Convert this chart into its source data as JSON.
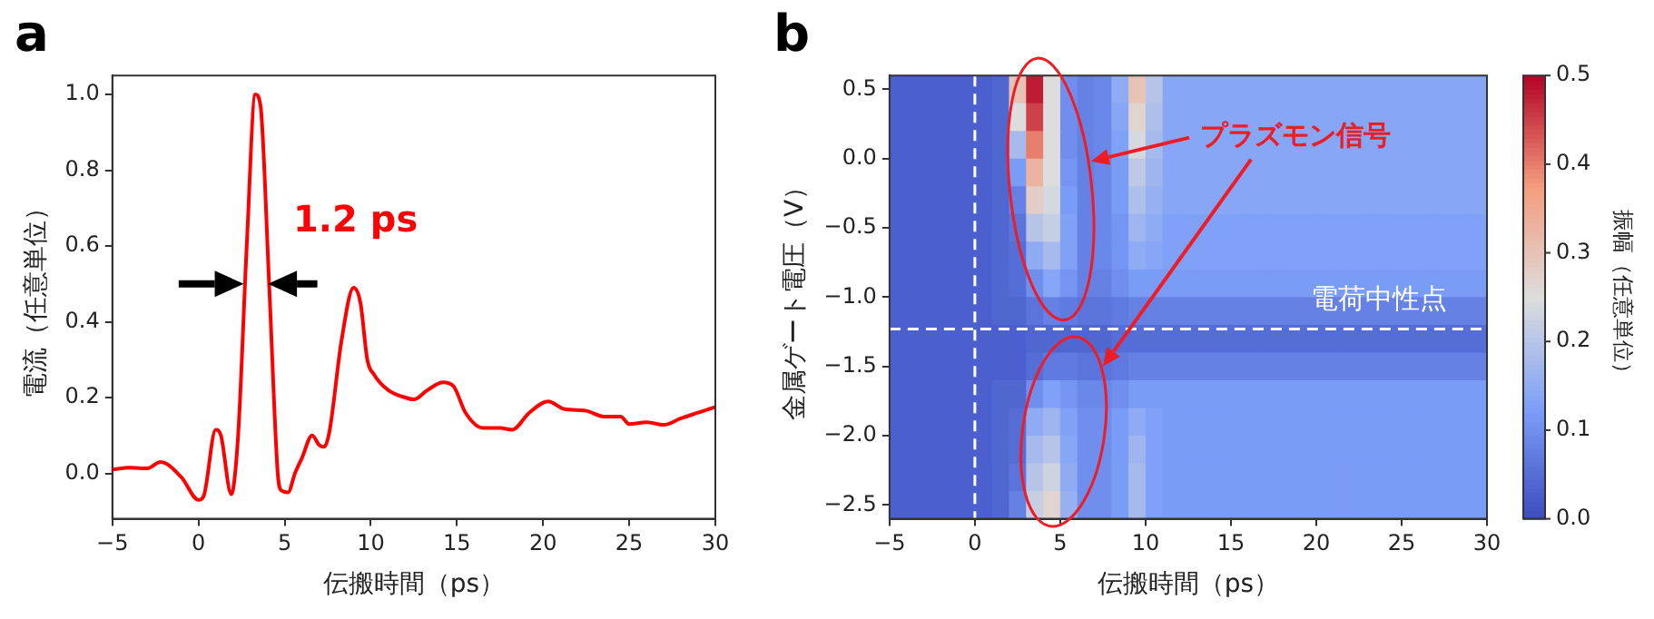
{
  "chart_data": [
    {
      "type": "line",
      "title": "a",
      "xlabel": "伝搬時間（ps）",
      "ylabel": "電流（任意単位）",
      "xlim": [
        -5,
        30
      ],
      "ylim": [
        -0.12,
        1.05
      ],
      "xticks": [
        {
          "value": -5,
          "label": "−5"
        },
        0,
        5,
        10,
        15,
        20,
        25,
        30
      ],
      "yticks": [
        {
          "value": 0,
          "label": "0.0"
        },
        0.2,
        0.4,
        0.6,
        0.8,
        {
          "value": 1,
          "label": "1.0"
        }
      ],
      "grid": false,
      "legend": false,
      "annotations": [
        "1.2 ps"
      ],
      "series": [
        {
          "color": "#ff0000",
          "x": [
            -5,
            -4,
            -3,
            -2.2,
            -1,
            0,
            0.3,
            1,
            1.3,
            1.9,
            2.3,
            2.8,
            3.3,
            3.6,
            4.1,
            4.6,
            4.8,
            5.2,
            5.6,
            6,
            6.6,
            7,
            7.3,
            7.6,
            8.3,
            9,
            9.4,
            9.8,
            10.2,
            11,
            12,
            12.5,
            13.3,
            14.2,
            14.8,
            15.5,
            16.5,
            17.5,
            18.2,
            19.2,
            20.3,
            21.2,
            22.5,
            23.5,
            24.5,
            25,
            26,
            27,
            28,
            29,
            30
          ],
          "values": [
            0.01,
            0.015,
            0.013,
            0.03,
            -0.01,
            -0.07,
            -0.06,
            0.115,
            0.1,
            -0.055,
            0.1,
            0.6,
            1.0,
            0.97,
            0.5,
            0.0,
            -0.045,
            -0.05,
            0.0,
            0.04,
            0.1,
            0.075,
            0.07,
            0.11,
            0.35,
            0.49,
            0.45,
            0.3,
            0.26,
            0.22,
            0.2,
            0.195,
            0.22,
            0.24,
            0.23,
            0.16,
            0.12,
            0.12,
            0.115,
            0.16,
            0.19,
            0.17,
            0.165,
            0.15,
            0.15,
            0.13,
            0.135,
            0.128,
            0.145,
            0.16,
            0.175
          ]
        }
      ]
    },
    {
      "type": "heatmap",
      "title": "b",
      "xlabel": "伝搬時間（ps）",
      "ylabel": "金属ゲート電圧（V）",
      "clabel": "振幅（任意単位）",
      "xlim": [
        -5,
        30
      ],
      "ylim": [
        -2.6,
        0.6
      ],
      "xticks": [
        {
          "value": -5,
          "label": "−5"
        },
        0,
        5,
        10,
        15,
        20,
        25,
        30
      ],
      "yticks": [
        0.5,
        {
          "value": 0,
          "label": "0.0"
        },
        {
          "value": -0.5,
          "label": "−0.5"
        },
        {
          "value": -1,
          "label": "−1.0"
        },
        {
          "value": -1.5,
          "label": "−1.5"
        },
        {
          "value": -2,
          "label": "−2.0"
        },
        {
          "value": -2.5,
          "label": "−2.5"
        }
      ],
      "clim": [
        0,
        0.5
      ],
      "cticks": [
        {
          "value": 0,
          "label": "0.0"
        },
        0.1,
        0.2,
        0.3,
        0.4,
        0.5
      ],
      "legend": false,
      "ref_lines": [
        {
          "axis": "x",
          "value": 0,
          "label": null,
          "color": "#ffffff",
          "line_style": "dashed"
        },
        {
          "axis": "y",
          "value": -1.23,
          "label": "電荷中性点",
          "color": "#ffffff",
          "line_style": "dashed"
        }
      ],
      "annotations": [
        "プラズモン信号"
      ],
      "x": [
        -4.5,
        -3.5,
        -2.5,
        -1.5,
        -0.5,
        0.5,
        1.5,
        2.5,
        3.5,
        4.5,
        5.5,
        6.5,
        7.5,
        8.5,
        9.5,
        10.5,
        11.5,
        12.5,
        13.5,
        14.5,
        15.5,
        16.5,
        17.5,
        18.5,
        19.5,
        20.5,
        21.5,
        22.5,
        23.5,
        24.5,
        25.5,
        26.5,
        27.5,
        28.5,
        29.5
      ],
      "y": [
        0.5,
        0.3,
        0.1,
        -0.1,
        -0.3,
        -0.5,
        -0.7,
        -0.9,
        -1.1,
        -1.3,
        -1.5,
        -1.7,
        -1.9,
        -2.1,
        -2.3,
        -2.5
      ],
      "cells": [
        [
          0.03,
          0.03,
          0.03,
          0.03,
          0.03,
          0.03,
          0.04,
          0.3,
          0.48,
          0.25,
          0.1,
          0.08,
          0.09,
          0.15,
          0.3,
          0.2,
          0.14,
          0.14,
          0.14,
          0.14,
          0.14,
          0.14,
          0.14,
          0.14,
          0.14,
          0.14,
          0.14,
          0.14,
          0.14,
          0.14,
          0.14,
          0.14,
          0.14,
          0.14,
          0.14
        ],
        [
          0.03,
          0.03,
          0.03,
          0.03,
          0.03,
          0.03,
          0.04,
          0.25,
          0.45,
          0.25,
          0.1,
          0.08,
          0.09,
          0.14,
          0.27,
          0.19,
          0.14,
          0.14,
          0.14,
          0.14,
          0.14,
          0.14,
          0.14,
          0.14,
          0.14,
          0.14,
          0.14,
          0.14,
          0.14,
          0.14,
          0.14,
          0.14,
          0.14,
          0.14,
          0.14
        ],
        [
          0.03,
          0.03,
          0.03,
          0.03,
          0.03,
          0.03,
          0.04,
          0.18,
          0.4,
          0.25,
          0.1,
          0.08,
          0.09,
          0.13,
          0.24,
          0.18,
          0.14,
          0.14,
          0.14,
          0.14,
          0.14,
          0.14,
          0.14,
          0.14,
          0.14,
          0.14,
          0.14,
          0.14,
          0.14,
          0.14,
          0.14,
          0.14,
          0.14,
          0.14,
          0.14
        ],
        [
          0.03,
          0.03,
          0.03,
          0.03,
          0.03,
          0.03,
          0.04,
          0.12,
          0.33,
          0.25,
          0.11,
          0.08,
          0.09,
          0.12,
          0.21,
          0.17,
          0.14,
          0.14,
          0.14,
          0.14,
          0.14,
          0.14,
          0.14,
          0.14,
          0.14,
          0.14,
          0.14,
          0.14,
          0.14,
          0.14,
          0.14,
          0.14,
          0.14,
          0.14,
          0.14
        ],
        [
          0.03,
          0.03,
          0.03,
          0.03,
          0.03,
          0.03,
          0.04,
          0.08,
          0.28,
          0.24,
          0.12,
          0.08,
          0.09,
          0.12,
          0.19,
          0.16,
          0.14,
          0.14,
          0.14,
          0.14,
          0.14,
          0.14,
          0.14,
          0.14,
          0.14,
          0.14,
          0.14,
          0.14,
          0.14,
          0.14,
          0.14,
          0.14,
          0.14,
          0.14,
          0.14
        ],
        [
          0.03,
          0.03,
          0.03,
          0.03,
          0.03,
          0.03,
          0.04,
          0.06,
          0.2,
          0.22,
          0.13,
          0.08,
          0.09,
          0.11,
          0.17,
          0.15,
          0.13,
          0.13,
          0.13,
          0.13,
          0.13,
          0.13,
          0.13,
          0.13,
          0.13,
          0.13,
          0.13,
          0.13,
          0.13,
          0.13,
          0.13,
          0.13,
          0.13,
          0.13,
          0.13
        ],
        [
          0.03,
          0.03,
          0.03,
          0.03,
          0.03,
          0.03,
          0.04,
          0.05,
          0.15,
          0.18,
          0.13,
          0.08,
          0.09,
          0.11,
          0.15,
          0.14,
          0.13,
          0.13,
          0.13,
          0.13,
          0.13,
          0.13,
          0.13,
          0.13,
          0.13,
          0.13,
          0.13,
          0.13,
          0.13,
          0.13,
          0.13,
          0.13,
          0.13,
          0.13,
          0.13
        ],
        [
          0.03,
          0.03,
          0.03,
          0.03,
          0.03,
          0.03,
          0.04,
          0.05,
          0.1,
          0.14,
          0.11,
          0.08,
          0.08,
          0.1,
          0.12,
          0.12,
          0.12,
          0.12,
          0.12,
          0.12,
          0.12,
          0.12,
          0.12,
          0.12,
          0.12,
          0.12,
          0.12,
          0.12,
          0.12,
          0.12,
          0.12,
          0.12,
          0.12,
          0.12,
          0.12
        ],
        [
          0.03,
          0.03,
          0.03,
          0.03,
          0.03,
          0.03,
          0.04,
          0.04,
          0.06,
          0.08,
          0.07,
          0.06,
          0.06,
          0.07,
          0.08,
          0.08,
          0.08,
          0.08,
          0.08,
          0.08,
          0.08,
          0.08,
          0.08,
          0.08,
          0.08,
          0.08,
          0.08,
          0.08,
          0.08,
          0.08,
          0.08,
          0.08,
          0.08,
          0.08,
          0.08
        ],
        [
          0.03,
          0.03,
          0.03,
          0.03,
          0.03,
          0.03,
          0.03,
          0.03,
          0.04,
          0.04,
          0.04,
          0.04,
          0.04,
          0.05,
          0.05,
          0.05,
          0.05,
          0.05,
          0.05,
          0.05,
          0.05,
          0.05,
          0.05,
          0.05,
          0.05,
          0.05,
          0.05,
          0.05,
          0.05,
          0.05,
          0.05,
          0.05,
          0.05,
          0.05,
          0.05
        ],
        [
          0.03,
          0.03,
          0.03,
          0.03,
          0.03,
          0.03,
          0.03,
          0.03,
          0.05,
          0.07,
          0.07,
          0.06,
          0.06,
          0.07,
          0.08,
          0.08,
          0.08,
          0.08,
          0.08,
          0.08,
          0.08,
          0.08,
          0.08,
          0.08,
          0.08,
          0.08,
          0.08,
          0.08,
          0.08,
          0.08,
          0.08,
          0.08,
          0.08,
          0.08,
          0.08
        ],
        [
          0.03,
          0.03,
          0.03,
          0.03,
          0.03,
          0.03,
          0.04,
          0.04,
          0.1,
          0.13,
          0.11,
          0.09,
          0.09,
          0.1,
          0.12,
          0.12,
          0.12,
          0.12,
          0.12,
          0.12,
          0.12,
          0.12,
          0.12,
          0.12,
          0.12,
          0.12,
          0.12,
          0.12,
          0.12,
          0.12,
          0.12,
          0.12,
          0.12,
          0.12,
          0.12
        ],
        [
          0.03,
          0.03,
          0.03,
          0.03,
          0.03,
          0.03,
          0.04,
          0.05,
          0.15,
          0.17,
          0.13,
          0.1,
          0.1,
          0.12,
          0.15,
          0.13,
          0.12,
          0.12,
          0.12,
          0.12,
          0.12,
          0.12,
          0.12,
          0.12,
          0.12,
          0.12,
          0.12,
          0.12,
          0.12,
          0.12,
          0.12,
          0.12,
          0.12,
          0.12,
          0.12
        ],
        [
          0.03,
          0.03,
          0.03,
          0.03,
          0.03,
          0.03,
          0.04,
          0.05,
          0.18,
          0.2,
          0.14,
          0.1,
          0.1,
          0.12,
          0.17,
          0.13,
          0.12,
          0.12,
          0.12,
          0.12,
          0.12,
          0.12,
          0.12,
          0.12,
          0.12,
          0.12,
          0.12,
          0.12,
          0.12,
          0.12,
          0.12,
          0.12,
          0.12,
          0.12,
          0.12
        ],
        [
          0.03,
          0.03,
          0.03,
          0.03,
          0.03,
          0.03,
          0.04,
          0.06,
          0.2,
          0.23,
          0.15,
          0.1,
          0.1,
          0.12,
          0.18,
          0.13,
          0.12,
          0.12,
          0.12,
          0.12,
          0.12,
          0.12,
          0.12,
          0.12,
          0.12,
          0.12,
          0.12,
          0.12,
          0.12,
          0.12,
          0.12,
          0.12,
          0.12,
          0.12,
          0.12
        ],
        [
          0.03,
          0.03,
          0.03,
          0.03,
          0.03,
          0.03,
          0.04,
          0.08,
          0.22,
          0.27,
          0.16,
          0.1,
          0.1,
          0.12,
          0.18,
          0.13,
          0.12,
          0.12,
          0.12,
          0.12,
          0.12,
          0.12,
          0.12,
          0.12,
          0.12,
          0.12,
          0.12,
          0.12,
          0.12,
          0.12,
          0.12,
          0.12,
          0.12,
          0.12,
          0.12
        ]
      ]
    }
  ]
}
